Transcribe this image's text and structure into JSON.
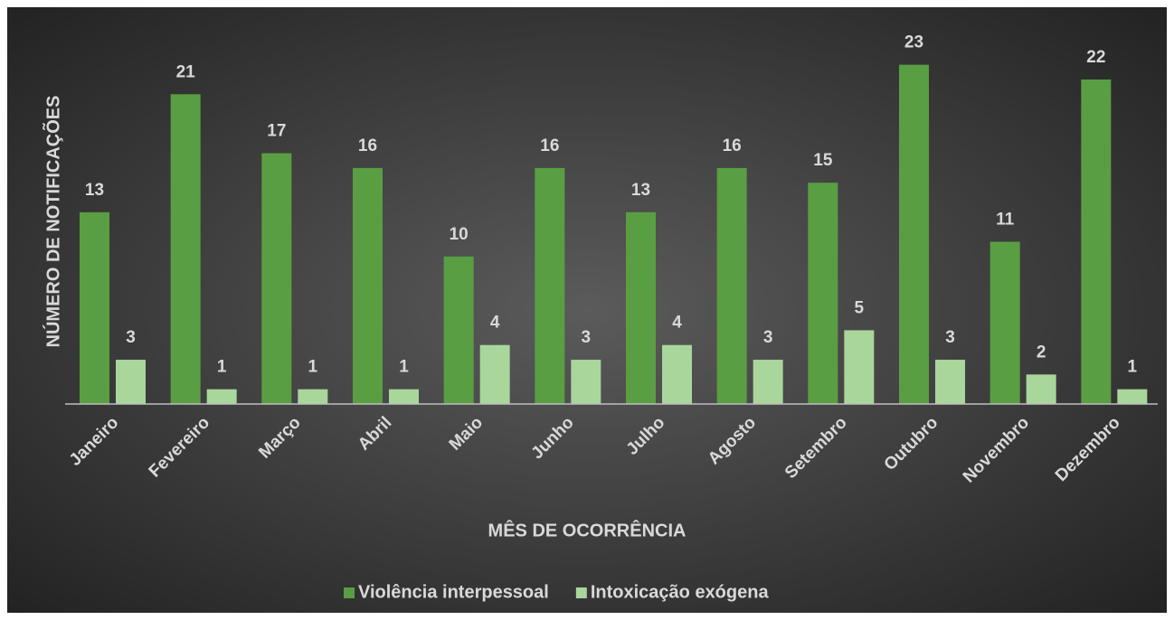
{
  "chart_data": {
    "type": "bar",
    "xlabel": "MÊS DE OCORRÊNCIA",
    "ylabel": "NÚMERO DE NOTIFICAÇÕES",
    "categories": [
      "Janeiro",
      "Fevereiro",
      "Março",
      "Abril",
      "Maio",
      "Junho",
      "Julho",
      "Agosto",
      "Setembro",
      "Outubro",
      "Novembro",
      "Dezembro"
    ],
    "series": [
      {
        "name": "Violência interpessoal",
        "color": "#5a9e43",
        "values": [
          13,
          21,
          17,
          16,
          10,
          16,
          13,
          16,
          15,
          23,
          11,
          22
        ]
      },
      {
        "name": "Intoxicação exógena",
        "color": "#a9d69b",
        "values": [
          3,
          1,
          1,
          1,
          4,
          3,
          4,
          3,
          5,
          3,
          2,
          1
        ]
      }
    ],
    "ylim": [
      0,
      25
    ],
    "legend": "bottom"
  }
}
